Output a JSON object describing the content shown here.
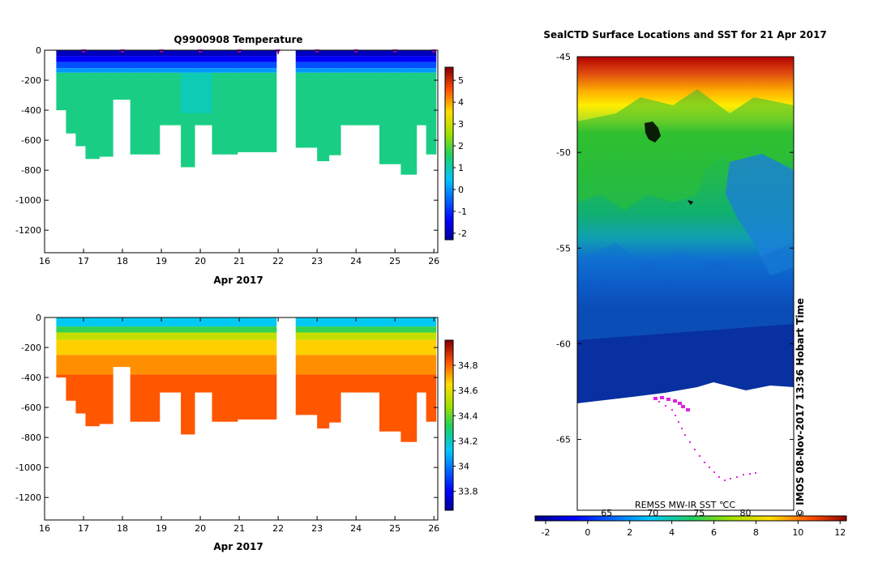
{
  "chart_data": [
    {
      "id": "temperature",
      "type": "heatmap",
      "title": "Q9900908  Temperature",
      "xlabel": "Apr 2017",
      "xlim": [
        16,
        26.1
      ],
      "xticks": [
        16,
        17,
        18,
        19,
        20,
        21,
        22,
        23,
        24,
        25,
        26
      ],
      "ylim": [
        -1350,
        0
      ],
      "yticks": [
        0,
        -200,
        -400,
        -600,
        -800,
        -1000,
        -1200
      ],
      "colorbar": {
        "min": -2.3,
        "max": 5.6,
        "ticks": [
          -2,
          -1,
          0,
          1,
          2,
          3,
          4,
          5
        ]
      },
      "profile_marker_days": [
        17,
        18,
        19,
        20,
        21,
        22,
        23,
        24,
        25,
        26
      ],
      "profiles": [
        {
          "t0": 16.3,
          "t1": 16.55,
          "depth": 400
        },
        {
          "t0": 16.55,
          "t1": 16.8,
          "depth": 555
        },
        {
          "t0": 16.8,
          "t1": 17.05,
          "depth": 640
        },
        {
          "t0": 17.05,
          "t1": 17.4,
          "depth": 725
        },
        {
          "t0": 17.4,
          "t1": 17.75,
          "depth": 710
        },
        {
          "t0": 17.75,
          "t1": 18.2,
          "depth": 330
        },
        {
          "t0": 18.2,
          "t1": 18.95,
          "depth": 695
        },
        {
          "t0": 18.95,
          "t1": 19.5,
          "depth": 500
        },
        {
          "t0": 19.5,
          "t1": 19.85,
          "depth": 780
        },
        {
          "t0": 19.85,
          "t1": 20.3,
          "depth": 500
        },
        {
          "t0": 20.3,
          "t1": 20.95,
          "depth": 695
        },
        {
          "t0": 20.95,
          "t1": 21.95,
          "depth": 680
        },
        {
          "t0": 22.45,
          "t1": 23.0,
          "depth": 650
        },
        {
          "t0": 23.0,
          "t1": 23.3,
          "depth": 740
        },
        {
          "t0": 23.3,
          "t1": 23.6,
          "depth": 700
        },
        {
          "t0": 23.6,
          "t1": 24.6,
          "depth": 500
        },
        {
          "t0": 24.6,
          "t1": 25.15,
          "depth": 760
        },
        {
          "t0": 25.15,
          "t1": 25.55,
          "depth": 830
        },
        {
          "t0": 25.55,
          "t1": 25.8,
          "depth": 500
        },
        {
          "t0": 25.8,
          "t1": 26.05,
          "depth": 695
        }
      ],
      "layers": [
        {
          "d0": 0,
          "d1": 40,
          "value": -1.9
        },
        {
          "d0": 40,
          "d1": 80,
          "value": -1.4
        },
        {
          "d0": 80,
          "d1": 120,
          "value": -0.6
        },
        {
          "d0": 120,
          "d1": 150,
          "value": 0.1
        },
        {
          "d0": 150,
          "d1": 9999,
          "value": 1.4
        }
      ],
      "mid_cool_band": {
        "t0": 19.0,
        "t1": 20.6,
        "d0": 150,
        "d1": 420,
        "value": 0.9
      }
    },
    {
      "id": "salinity",
      "type": "heatmap",
      "title": "",
      "xlabel": "Apr 2017",
      "xlim": [
        16,
        26.1
      ],
      "xticks": [
        16,
        17,
        18,
        19,
        20,
        21,
        22,
        23,
        24,
        25,
        26
      ],
      "ylim": [
        -1350,
        0
      ],
      "yticks": [
        0,
        -200,
        -400,
        -600,
        -800,
        -1000,
        -1200
      ],
      "colorbar": {
        "min": 33.65,
        "max": 35.0,
        "ticks": [
          33.8,
          34,
          34.2,
          34.4,
          34.6,
          34.8
        ]
      },
      "layers": [
        {
          "d0": 0,
          "d1": 60,
          "value": 34.15
        },
        {
          "d0": 60,
          "d1": 100,
          "value": 34.35
        },
        {
          "d0": 100,
          "d1": 150,
          "value": 34.55
        },
        {
          "d0": 150,
          "d1": 250,
          "value": 34.68
        },
        {
          "d0": 250,
          "d1": 380,
          "value": 34.76
        },
        {
          "d0": 380,
          "d1": 9999,
          "value": 34.83
        }
      ]
    },
    {
      "id": "sst-map",
      "type": "heatmap",
      "title": "SealCTD Surface Locations and SST for 21 Apr 2017",
      "ylim": [
        -68.7,
        -45
      ],
      "yticks": [
        -45,
        -50,
        -55,
        -60,
        -65
      ],
      "source_label": "REMSS MW-IR SST ℃C",
      "side_label": "©  IMOS 08-Nov-2017 13:36 Hobart Time",
      "colorbar": {
        "min": -2.5,
        "max": 12.3,
        "ticks": [
          -2,
          0,
          2,
          4,
          6,
          8,
          10,
          12
        ],
        "secondary_ticks": [
          {
            "label": "65",
            "at": 0.9
          },
          {
            "label": "70",
            "at": 3.1
          },
          {
            "label": "75",
            "at": 5.3
          },
          {
            "label": "80",
            "at": 7.5
          }
        ]
      }
    }
  ]
}
